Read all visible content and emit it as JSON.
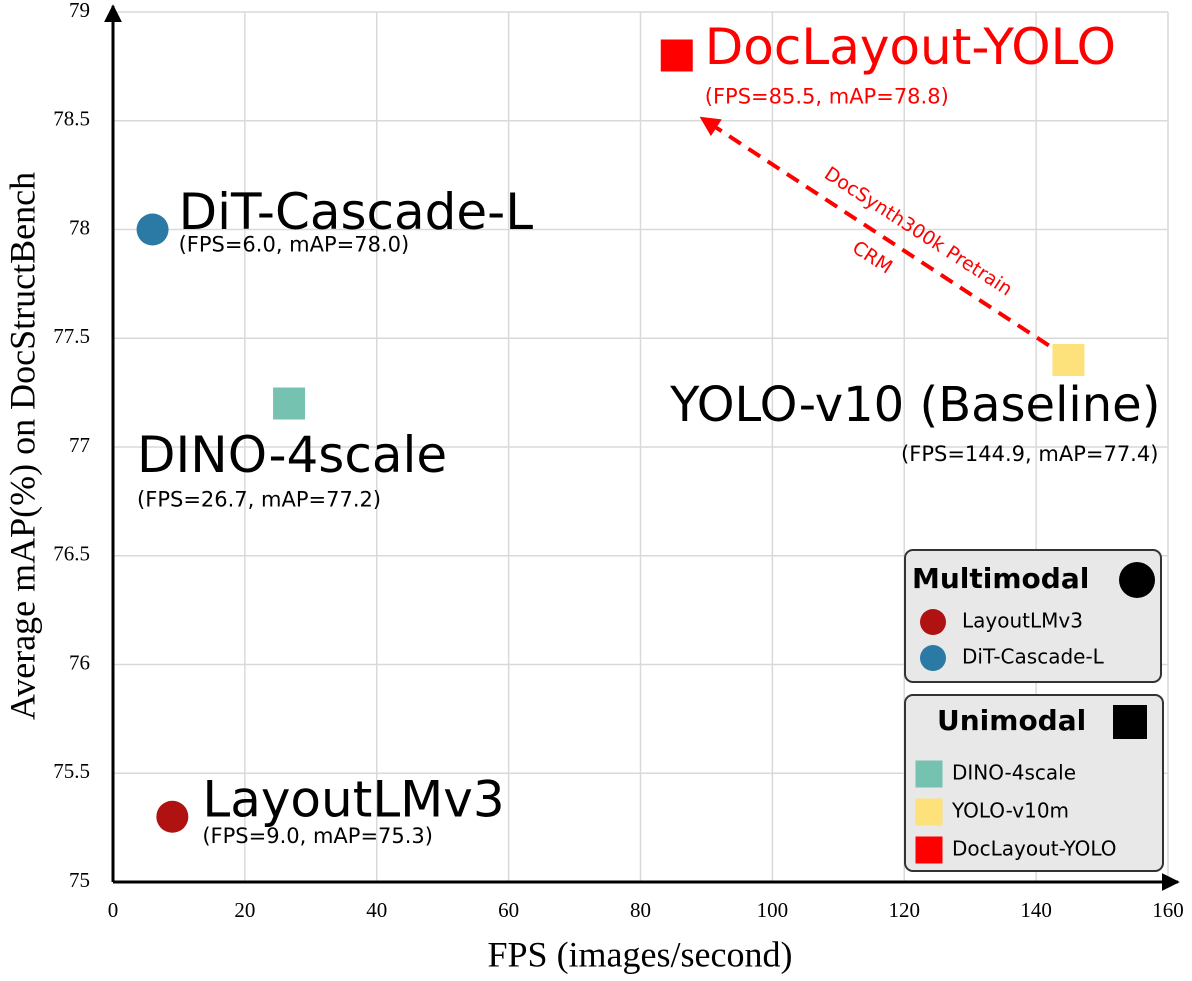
{
  "chart_data": {
    "type": "scatter",
    "xlabel": "FPS (images/second)",
    "ylabel": "Average mAP(%) on DocStructBench",
    "xlim": [
      0,
      160
    ],
    "ylim": [
      75,
      79
    ],
    "xticks": [
      0,
      20,
      40,
      60,
      80,
      100,
      120,
      140,
      160
    ],
    "yticks": [
      75,
      75.5,
      76,
      76.5,
      77,
      77.5,
      78,
      78.5,
      79
    ],
    "grid": true,
    "series": [
      {
        "name": "LayoutLMv3",
        "color": "#b01212",
        "marker": "circle",
        "x": [
          9.0
        ],
        "values": [
          75.3
        ],
        "label": "LayoutLMv3",
        "label_detail": "(FPS=9.0, mAP=75.3)",
        "label_color": "#000000"
      },
      {
        "name": "DiT-Cascade-L",
        "color": "#2a7aa5",
        "marker": "circle",
        "x": [
          6.0
        ],
        "values": [
          78.0
        ],
        "label": "DiT-Cascade-L",
        "label_detail": "(FPS=6.0, mAP=78.0)",
        "label_color": "#000000"
      },
      {
        "name": "DINO-4scale",
        "color": "#74c2af",
        "marker": "square",
        "x": [
          26.7
        ],
        "values": [
          77.2
        ],
        "label": "DINO-4scale",
        "label_detail": "(FPS=26.7, mAP=77.2)",
        "label_color": "#000000"
      },
      {
        "name": "YOLO-v10m",
        "color": "#fde17a",
        "marker": "square",
        "x": [
          144.9
        ],
        "values": [
          77.4
        ],
        "label": "YOLO-v10 (Baseline)",
        "label_detail": "(FPS=144.9, mAP=77.4)",
        "label_color": "#000000"
      },
      {
        "name": "DocLayout-YOLO",
        "color": "#ff0000",
        "marker": "square",
        "x": [
          85.5
        ],
        "values": [
          78.8
        ],
        "label": "DocLayout-YOLO",
        "label_detail": "(FPS=85.5, mAP=78.8)",
        "label_color": "#ff0000"
      }
    ],
    "legend_groups": [
      {
        "title": "Multimodal",
        "marker": "circle"
      },
      {
        "title": "Unimodal",
        "marker": "square"
      }
    ],
    "annotations": [
      "DocSynth300k Pretrain",
      "CRM"
    ]
  }
}
